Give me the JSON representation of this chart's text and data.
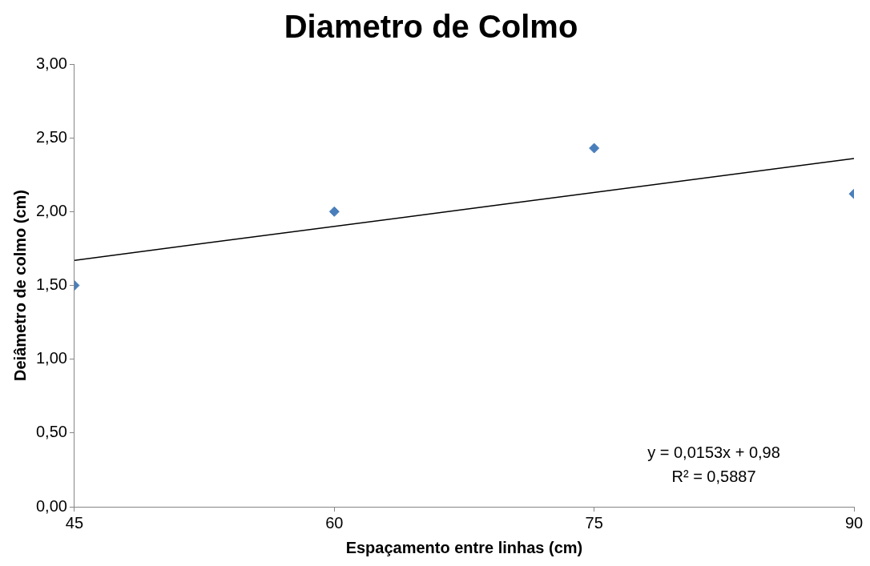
{
  "chart_data": {
    "type": "scatter",
    "title": "Diametro de Colmo",
    "xlabel": "Espaçamento entre linhas (cm)",
    "ylabel": "Deiâmetro de colmo (cm)",
    "series": [
      {
        "type": "scatter",
        "color": "#4a7ebb",
        "marker": "diamond",
        "x": [
          45,
          60,
          75,
          90
        ],
        "values": [
          1.5,
          2.0,
          2.43,
          2.12
        ]
      },
      {
        "type": "line",
        "color": "#000000",
        "marker": "none",
        "x": [
          45,
          90
        ],
        "values": [
          1.67,
          2.36
        ]
      }
    ],
    "xlim": [
      45,
      90
    ],
    "xticks": [
      45,
      60,
      75,
      90
    ],
    "ylim": [
      0,
      3
    ],
    "yticks": [
      {
        "value": 0,
        "label": "0,00"
      },
      {
        "value": 0.5,
        "label": "0,50"
      },
      {
        "value": 1,
        "label": "1,00"
      },
      {
        "value": 1.5,
        "label": "1,50"
      },
      {
        "value": 2,
        "label": "2,00"
      },
      {
        "value": 2.5,
        "label": "2,50"
      },
      {
        "value": 3,
        "label": "3,00"
      }
    ],
    "annotations": [
      "y = 0,0153x + 0,98",
      "R² = 0,5887"
    ],
    "grid": false,
    "legend": false,
    "line_style": "solid"
  }
}
